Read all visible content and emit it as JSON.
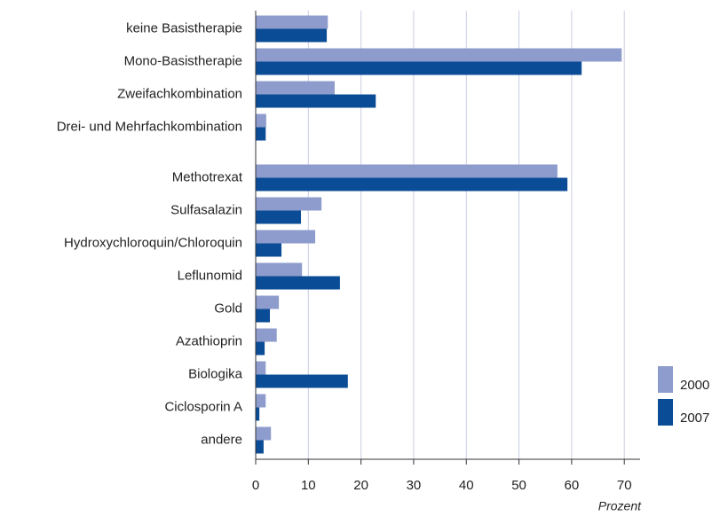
{
  "chart_data": {
    "type": "barh",
    "x_label": "Prozent",
    "categories": [
      "keine Basistherapie",
      "Mono-Basistherapie",
      "Zweifachkombination",
      "Drei- und Mehrfachkombination",
      null,
      "Methotrexat",
      "Sulfasalazin",
      "Hydroxychloroquin/Chloroquin",
      "Leflunomid",
      "Gold",
      "Azathioprin",
      "Biologika",
      "Ciclosporin A",
      "andere"
    ],
    "series": [
      {
        "name": "2000",
        "color": "#8d9ccc",
        "values": [
          13.7,
          69.5,
          15.0,
          2.0,
          null,
          57.3,
          12.5,
          11.3,
          8.8,
          4.4,
          4.0,
          1.9,
          1.9,
          2.9
        ]
      },
      {
        "name": "2007",
        "color": "#0b4c96",
        "values": [
          13.5,
          61.9,
          22.8,
          1.9,
          null,
          59.2,
          8.6,
          4.9,
          16.0,
          2.7,
          1.7,
          17.5,
          0.7,
          1.5
        ]
      }
    ],
    "xlim": [
      0,
      73
    ],
    "xticks": [
      0,
      10,
      20,
      30,
      40,
      50,
      60,
      70
    ],
    "grid": true,
    "legend": "lower right"
  }
}
